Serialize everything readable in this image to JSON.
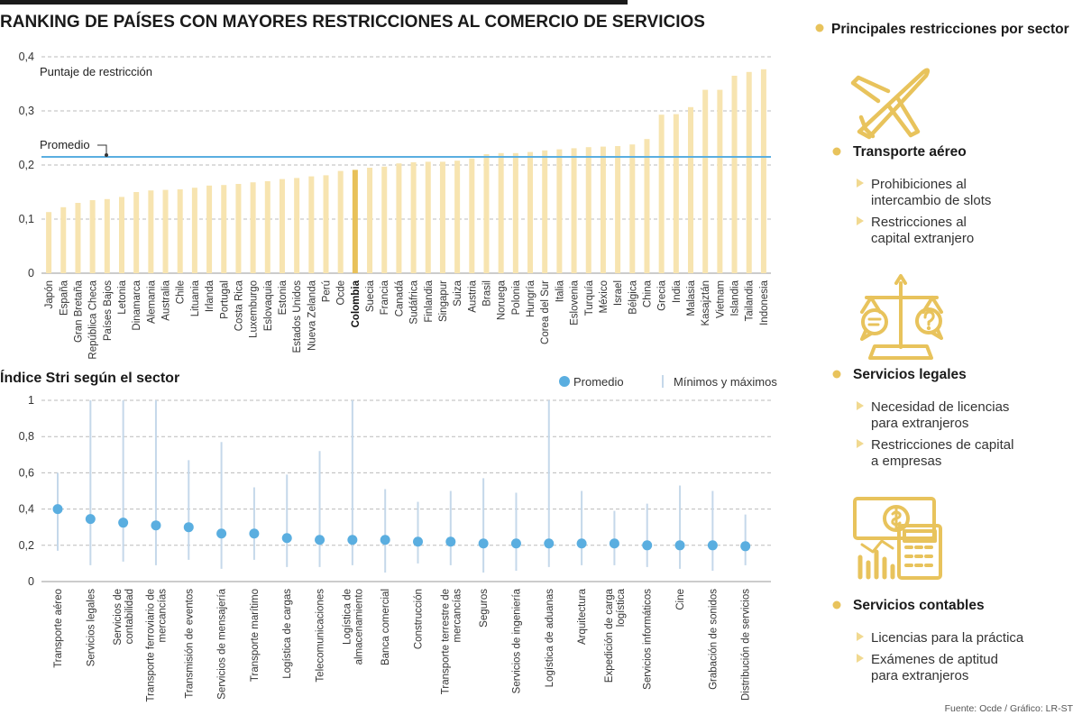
{
  "chart_data": [
    {
      "type": "bar",
      "title": "RANKING DE PAÍSES CON MAYORES RESTRICCIONES AL COMERCIO DE SERVICIOS",
      "ylabel": "Puntaje de restricción",
      "ylim": [
        0,
        0.4
      ],
      "yticks": [
        "0",
        "0,1",
        "0,2",
        "0,3",
        "0,4"
      ],
      "highlight": "Colombia",
      "average": {
        "label": "Promedio",
        "value": 0.215
      },
      "categories": [
        "Japón",
        "España",
        "Gran Bretaña",
        "República Checa",
        "Países Bajos",
        "Letonia",
        "Dinamarca",
        "Alemania",
        "Australia",
        "Chile",
        "Lituania",
        "Irlanda",
        "Portugal",
        "Costa Rica",
        "Luxemburgo",
        "Eslovaquia",
        "Estonia",
        "Estados Unidos",
        "Nueva Zelanda",
        "Perú",
        "Ocde",
        "Colombia",
        "Suecia",
        "Francia",
        "Canadá",
        "Sudáfrica",
        "Finlandia",
        "Singapur",
        "Suiza",
        "Austria",
        "Brasil",
        "Noruega",
        "Polonia",
        "Hungría",
        "Corea del Sur",
        "Italia",
        "Eslovenia",
        "Turquía",
        "México",
        "Israel",
        "Bélgica",
        "China",
        "Grecia",
        "India",
        "Malasia",
        "Kasajztán",
        "Vietnam",
        "Islandia",
        "Tailandia",
        "Indonesia"
      ],
      "values": [
        0.113,
        0.122,
        0.13,
        0.135,
        0.137,
        0.141,
        0.15,
        0.153,
        0.154,
        0.155,
        0.158,
        0.162,
        0.163,
        0.165,
        0.168,
        0.17,
        0.174,
        0.176,
        0.179,
        0.181,
        0.189,
        0.191,
        0.195,
        0.197,
        0.203,
        0.205,
        0.206,
        0.206,
        0.208,
        0.212,
        0.22,
        0.222,
        0.222,
        0.224,
        0.227,
        0.229,
        0.231,
        0.233,
        0.234,
        0.235,
        0.238,
        0.248,
        0.293,
        0.294,
        0.307,
        0.339,
        0.339,
        0.365,
        0.372,
        0.377
      ]
    },
    {
      "type": "scatter",
      "title": "Índice Stri según el sector",
      "ylim": [
        0,
        1
      ],
      "yticks": [
        "0",
        "0,2",
        "0,4",
        "0,6",
        "0,8",
        "1"
      ],
      "legend": [
        "Promedio",
        "Mínimos y máximos"
      ],
      "categories": [
        "Transporte aéreo",
        "Servicios legales",
        "Servicios de\ncontabilidad",
        "Transporte ferroviario de\nmercancías",
        "Transmisión de eventos",
        "Servicios de mensajería",
        "Transporte marítimo",
        "Logística de cargas",
        "Telecomunicaciones",
        "Logística de\nalmacenamiento",
        "Banca comercial",
        "Construcción",
        "Transporte terrestre de\nmercancías",
        "Seguros",
        "Servicios de ingeniería",
        "Logística de aduanas",
        "Arquitectura",
        "Expedición de carga\nlogística",
        "Servicios informáticos",
        "Cine",
        "Grabación de sonidos",
        "Distribución de servicios"
      ],
      "avg": [
        0.4,
        0.345,
        0.325,
        0.31,
        0.3,
        0.265,
        0.265,
        0.24,
        0.23,
        0.23,
        0.23,
        0.22,
        0.22,
        0.21,
        0.21,
        0.21,
        0.21,
        0.21,
        0.2,
        0.2,
        0.2,
        0.195
      ],
      "min": [
        0.17,
        0.09,
        0.11,
        0.09,
        0.12,
        0.07,
        0.12,
        0.08,
        0.08,
        0.09,
        0.05,
        0.1,
        0.09,
        0.05,
        0.06,
        0.08,
        0.09,
        0.09,
        0.08,
        0.07,
        0.06,
        0.09
      ],
      "max": [
        0.6,
        1.0,
        1.0,
        1.0,
        0.67,
        0.77,
        0.52,
        0.59,
        0.72,
        1.0,
        0.51,
        0.44,
        0.5,
        0.57,
        0.49,
        1.0,
        0.5,
        0.39,
        0.43,
        0.53,
        0.5,
        0.37
      ]
    }
  ],
  "sidebar": {
    "heading": "Principales restricciones por sector",
    "sections": [
      {
        "icon": "airplane-icon",
        "title": "Transporte aéreo",
        "items": [
          [
            "Prohibiciones al",
            "intercambio de slots"
          ],
          [
            "Restricciones al",
            "capital extranjero"
          ]
        ]
      },
      {
        "icon": "scales-of-justice-icon",
        "title": "Servicios legales",
        "items": [
          [
            "Necesidad de licencias",
            "para extranjeros"
          ],
          [
            "Restricciones de capital",
            "a empresas"
          ]
        ]
      },
      {
        "icon": "money-calculator-icon",
        "title": "Servicios contables",
        "items": [
          [
            "Licencias para la práctica"
          ],
          [
            "Exámenes de aptitud",
            "para extranjeros"
          ]
        ]
      }
    ]
  },
  "source": "Fuente: Ocde / Gráfico: LR-ST",
  "colors": {
    "bar": "#f7e4b0",
    "highlight_bar": "#e8c15a",
    "accent": "#e8c35c",
    "average_line": "#5aaee0",
    "dot": "#5aaee0",
    "range_line": "#c5d8ea",
    "grid": "#bbbbbb",
    "icon": "#e8c35c"
  }
}
